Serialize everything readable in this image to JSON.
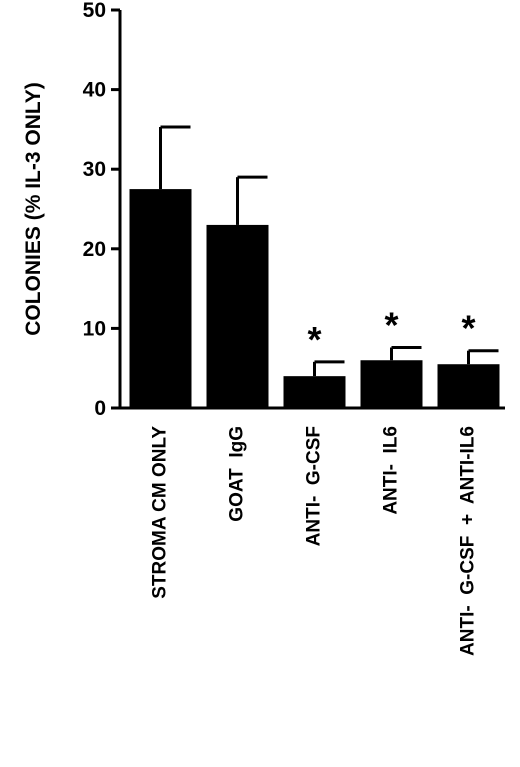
{
  "chart_data": {
    "type": "bar",
    "title": "",
    "xlabel": "",
    "ylabel": "COLONIES (% IL-3 ONLY)",
    "ylim": [
      0,
      50
    ],
    "yticks": [
      0,
      10,
      20,
      30,
      40,
      50
    ],
    "categories": [
      "STROMA CM ONLY",
      "GOAT  IgG",
      "ANTI-  G-CSF",
      "ANTI-  IL6",
      "ANTI-  G-CSF  +  ANTI-IL6"
    ],
    "values": [
      27.5,
      23,
      4,
      6,
      5.5
    ],
    "error_upper": [
      7.8,
      6.0,
      1.8,
      1.6,
      1.7
    ],
    "annotations": [
      "",
      "",
      "*",
      "*",
      "*"
    ],
    "grid": false,
    "legend": "none",
    "bar_color": "#000000"
  }
}
